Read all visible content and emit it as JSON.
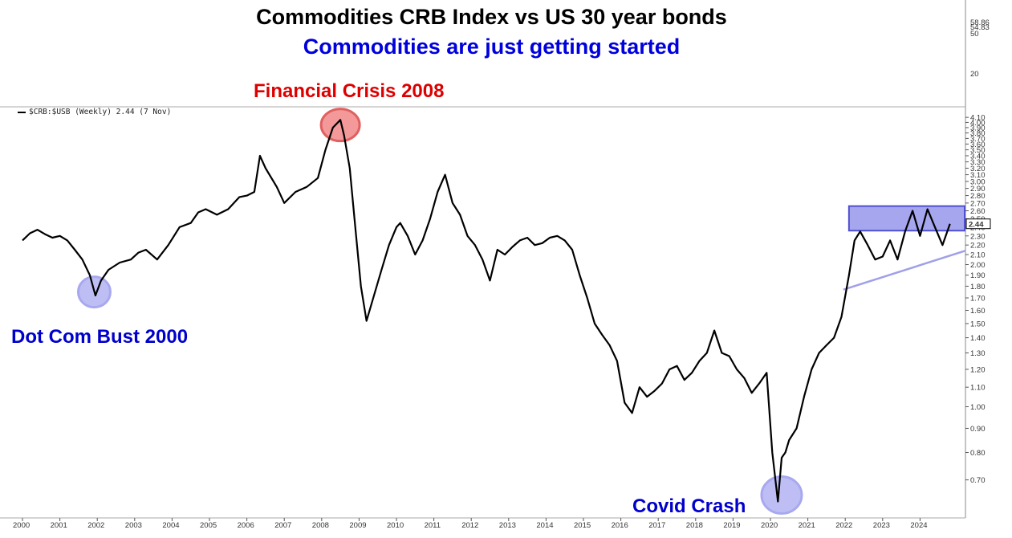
{
  "chart_data": {
    "type": "line",
    "title": "Commodities CRB Index vs US 30 year bonds",
    "subtitle": "Commodities are just getting started",
    "subtitle_color": "#0000dd",
    "legend": "$CRB:$USB (Weekly) 2.44 (7 Nov)",
    "last_value_label": "2.44",
    "top_panel_ticks": [
      "58.86",
      "54.83",
      "50",
      "20"
    ],
    "yscale": "log",
    "ylim": [
      0.6,
      4.2
    ],
    "yticks": [
      "4.10",
      "4.00",
      "3.90",
      "3.80",
      "3.70",
      "3.60",
      "3.50",
      "3.40",
      "3.30",
      "3.20",
      "3.10",
      "3.00",
      "2.90",
      "2.80",
      "2.70",
      "2.60",
      "2.50",
      "2.40",
      "2.30",
      "2.20",
      "2.10",
      "2.00",
      "1.90",
      "1.80",
      "1.70",
      "1.60",
      "1.50",
      "1.40",
      "1.30",
      "1.20",
      "1.10",
      "1.00",
      "0.90",
      "0.80",
      "0.70"
    ],
    "xlim": [
      2000.0,
      2025.0
    ],
    "xticks": [
      "2000",
      "2001",
      "2002",
      "2003",
      "2004",
      "2005",
      "2006",
      "2007",
      "2008",
      "2009",
      "2010",
      "2011",
      "2012",
      "2013",
      "2014",
      "2015",
      "2016",
      "2017",
      "2018",
      "2019",
      "2020",
      "2021",
      "2022",
      "2023",
      "2024"
    ],
    "series": [
      {
        "color": "#000000",
        "x": [
          2000.0,
          2000.2,
          2000.4,
          2000.6,
          2000.8,
          2001.0,
          2001.2,
          2001.4,
          2001.6,
          2001.8,
          2001.95,
          2002.1,
          2002.3,
          2002.6,
          2002.9,
          2003.1,
          2003.3,
          2003.6,
          2003.9,
          2004.2,
          2004.5,
          2004.7,
          2004.9,
          2005.2,
          2005.5,
          2005.8,
          2006.0,
          2006.2,
          2006.35,
          2006.5,
          2006.8,
          2007.0,
          2007.3,
          2007.6,
          2007.9,
          2008.1,
          2008.3,
          2008.5,
          2008.6,
          2008.75,
          2008.9,
          2009.05,
          2009.2,
          2009.4,
          2009.6,
          2009.8,
          2010.0,
          2010.1,
          2010.3,
          2010.5,
          2010.7,
          2010.9,
          2011.1,
          2011.3,
          2011.5,
          2011.7,
          2011.9,
          2012.1,
          2012.3,
          2012.5,
          2012.7,
          2012.9,
          2013.1,
          2013.3,
          2013.5,
          2013.7,
          2013.9,
          2014.1,
          2014.3,
          2014.5,
          2014.7,
          2014.9,
          2015.1,
          2015.3,
          2015.5,
          2015.7,
          2015.9,
          2016.1,
          2016.3,
          2016.5,
          2016.7,
          2016.9,
          2017.1,
          2017.3,
          2017.5,
          2017.7,
          2017.9,
          2018.1,
          2018.3,
          2018.5,
          2018.7,
          2018.9,
          2019.1,
          2019.3,
          2019.5,
          2019.7,
          2019.9,
          2020.05,
          2020.2,
          2020.3,
          2020.4,
          2020.5,
          2020.7,
          2020.9,
          2021.1,
          2021.3,
          2021.5,
          2021.7,
          2021.9,
          2022.1,
          2022.25,
          2022.4,
          2022.6,
          2022.8,
          2023.0,
          2023.2,
          2023.4,
          2023.6,
          2023.8,
          2024.0,
          2024.2,
          2024.4,
          2024.6,
          2024.8
        ],
        "y": [
          2.25,
          2.33,
          2.37,
          2.32,
          2.28,
          2.3,
          2.25,
          2.15,
          2.05,
          1.9,
          1.72,
          1.85,
          1.95,
          2.02,
          2.05,
          2.12,
          2.15,
          2.05,
          2.2,
          2.4,
          2.45,
          2.58,
          2.62,
          2.55,
          2.62,
          2.78,
          2.8,
          2.85,
          3.4,
          3.2,
          2.92,
          2.7,
          2.85,
          2.92,
          3.05,
          3.5,
          3.9,
          4.05,
          3.75,
          3.2,
          2.4,
          1.8,
          1.52,
          1.72,
          1.95,
          2.2,
          2.4,
          2.45,
          2.3,
          2.1,
          2.25,
          2.5,
          2.85,
          3.1,
          2.7,
          2.55,
          2.3,
          2.2,
          2.05,
          1.85,
          2.15,
          2.1,
          2.18,
          2.25,
          2.28,
          2.2,
          2.22,
          2.28,
          2.3,
          2.25,
          2.15,
          1.9,
          1.7,
          1.5,
          1.42,
          1.35,
          1.25,
          1.02,
          0.97,
          1.1,
          1.05,
          1.08,
          1.12,
          1.2,
          1.22,
          1.14,
          1.18,
          1.25,
          1.3,
          1.45,
          1.3,
          1.28,
          1.2,
          1.15,
          1.07,
          1.12,
          1.18,
          0.8,
          0.63,
          0.78,
          0.8,
          0.85,
          0.9,
          1.05,
          1.2,
          1.3,
          1.35,
          1.4,
          1.55,
          1.9,
          2.25,
          2.35,
          2.2,
          2.05,
          2.08,
          2.25,
          2.05,
          2.35,
          2.6,
          2.3,
          2.62,
          2.4,
          2.2,
          2.44
        ]
      }
    ],
    "annotations": [
      {
        "text": "Financial Crisis 2008",
        "color": "#dd0000"
      },
      {
        "text": "Dot Com Bust 2000",
        "color": "#0000cc"
      },
      {
        "text": "Covid Crash",
        "color": "#0000cc"
      }
    ],
    "highlight_colors": {
      "red_circle": "#f08080",
      "blue_circle": "#a8a8f0",
      "range_box": "#8888e8",
      "trendline": "#a0a0e8"
    }
  }
}
